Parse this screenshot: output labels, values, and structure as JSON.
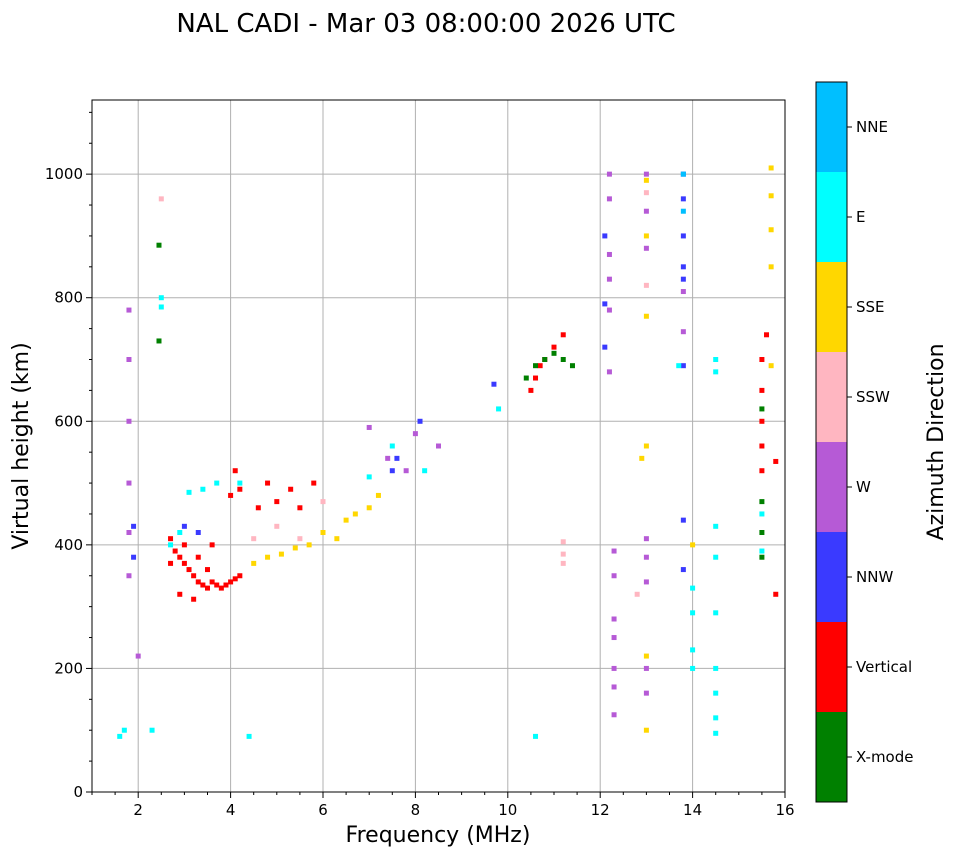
{
  "chart_data": {
    "type": "scatter",
    "title": "NAL CADI - Mar 03 08:00:00 2026 UTC",
    "xlabel": "Frequency (MHz)",
    "ylabel": "Virtual height (km)",
    "xlim": [
      1,
      16
    ],
    "ylim": [
      0,
      1120
    ],
    "xticks": [
      2,
      4,
      6,
      8,
      10,
      12,
      14,
      16
    ],
    "yticks": [
      0,
      200,
      400,
      600,
      800,
      1000
    ],
    "grid": true,
    "colorbar": {
      "label": "Azimuth Direction",
      "categories": [
        {
          "name": "X-mode",
          "color": "#008000"
        },
        {
          "name": "Vertical",
          "color": "#ff0000"
        },
        {
          "name": "NNW",
          "color": "#3a3aff"
        },
        {
          "name": "W",
          "color": "#b65ad6"
        },
        {
          "name": "SSW",
          "color": "#ffb6c1"
        },
        {
          "name": "SSE",
          "color": "#ffd700"
        },
        {
          "name": "E",
          "color": "#00ffff"
        },
        {
          "name": "NNE",
          "color": "#00bfff"
        }
      ]
    },
    "series": [
      {
        "name": "Vertical",
        "points": [
          [
            2.7,
            410
          ],
          [
            2.8,
            390
          ],
          [
            2.9,
            380
          ],
          [
            3.0,
            370
          ],
          [
            3.1,
            360
          ],
          [
            3.2,
            350
          ],
          [
            3.3,
            340
          ],
          [
            3.4,
            335
          ],
          [
            3.5,
            330
          ],
          [
            3.6,
            340
          ],
          [
            3.7,
            335
          ],
          [
            3.8,
            330
          ],
          [
            3.9,
            335
          ],
          [
            4.0,
            340
          ],
          [
            4.1,
            345
          ],
          [
            4.2,
            350
          ],
          [
            2.7,
            370
          ],
          [
            3.0,
            400
          ],
          [
            3.3,
            380
          ],
          [
            3.5,
            360
          ],
          [
            3.6,
            400
          ],
          [
            4.0,
            480
          ],
          [
            4.1,
            520
          ],
          [
            4.2,
            490
          ],
          [
            2.9,
            320
          ],
          [
            3.2,
            312
          ],
          [
            4.6,
            460
          ],
          [
            4.8,
            500
          ],
          [
            5.0,
            470
          ],
          [
            5.3,
            490
          ],
          [
            5.5,
            460
          ],
          [
            5.8,
            500
          ],
          [
            10.5,
            650
          ],
          [
            10.6,
            670
          ],
          [
            10.7,
            690
          ],
          [
            10.8,
            700
          ],
          [
            11.0,
            720
          ],
          [
            11.2,
            740
          ],
          [
            15.5,
            700
          ],
          [
            15.5,
            650
          ],
          [
            15.5,
            600
          ],
          [
            15.5,
            560
          ],
          [
            15.5,
            520
          ],
          [
            15.6,
            740
          ],
          [
            15.8,
            535
          ],
          [
            15.8,
            320
          ]
        ]
      },
      {
        "name": "X-mode",
        "points": [
          [
            2.45,
            885
          ],
          [
            2.45,
            730
          ],
          [
            10.4,
            670
          ],
          [
            10.6,
            690
          ],
          [
            10.8,
            700
          ],
          [
            11.0,
            710
          ],
          [
            11.2,
            700
          ],
          [
            11.4,
            690
          ],
          [
            15.5,
            470
          ],
          [
            15.5,
            420
          ],
          [
            15.5,
            380
          ],
          [
            15.5,
            620
          ]
        ]
      },
      {
        "name": "NNW",
        "points": [
          [
            1.9,
            430
          ],
          [
            1.9,
            380
          ],
          [
            3.0,
            430
          ],
          [
            3.3,
            420
          ],
          [
            7.5,
            520
          ],
          [
            7.6,
            540
          ],
          [
            8.1,
            600
          ],
          [
            9.7,
            660
          ],
          [
            12.1,
            900
          ],
          [
            12.1,
            790
          ],
          [
            12.1,
            720
          ],
          [
            13.8,
            1000
          ],
          [
            13.8,
            960
          ],
          [
            13.8,
            900
          ],
          [
            13.8,
            850
          ],
          [
            13.8,
            830
          ],
          [
            13.8,
            690
          ],
          [
            13.8,
            360
          ],
          [
            13.8,
            440
          ]
        ]
      },
      {
        "name": "W",
        "points": [
          [
            1.8,
            780
          ],
          [
            1.8,
            700
          ],
          [
            1.8,
            600
          ],
          [
            1.8,
            500
          ],
          [
            1.8,
            420
          ],
          [
            1.8,
            350
          ],
          [
            2.0,
            220
          ],
          [
            7.0,
            590
          ],
          [
            7.4,
            540
          ],
          [
            7.8,
            520
          ],
          [
            8.0,
            580
          ],
          [
            8.5,
            560
          ],
          [
            12.2,
            1000
          ],
          [
            12.2,
            960
          ],
          [
            12.2,
            870
          ],
          [
            12.2,
            830
          ],
          [
            12.2,
            780
          ],
          [
            12.2,
            680
          ],
          [
            12.3,
            390
          ],
          [
            12.3,
            350
          ],
          [
            12.3,
            280
          ],
          [
            12.3,
            250
          ],
          [
            12.3,
            200
          ],
          [
            12.3,
            170
          ],
          [
            12.3,
            125
          ],
          [
            13.0,
            1000
          ],
          [
            13.0,
            940
          ],
          [
            13.0,
            880
          ],
          [
            13.0,
            410
          ],
          [
            13.0,
            380
          ],
          [
            13.0,
            340
          ],
          [
            13.0,
            200
          ],
          [
            13.0,
            160
          ],
          [
            13.8,
            810
          ],
          [
            13.8,
            745
          ]
        ]
      },
      {
        "name": "SSW",
        "points": [
          [
            2.5,
            960
          ],
          [
            4.5,
            410
          ],
          [
            5.0,
            430
          ],
          [
            5.5,
            410
          ],
          [
            6.0,
            470
          ],
          [
            11.2,
            405
          ],
          [
            11.2,
            385
          ],
          [
            11.2,
            370
          ],
          [
            12.8,
            320
          ],
          [
            13.0,
            970
          ],
          [
            13.0,
            820
          ]
        ]
      },
      {
        "name": "SSE",
        "points": [
          [
            4.5,
            370
          ],
          [
            4.8,
            380
          ],
          [
            5.1,
            385
          ],
          [
            5.4,
            395
          ],
          [
            5.7,
            400
          ],
          [
            6.0,
            420
          ],
          [
            6.3,
            410
          ],
          [
            6.5,
            440
          ],
          [
            6.7,
            450
          ],
          [
            7.0,
            460
          ],
          [
            7.2,
            480
          ],
          [
            12.9,
            540
          ],
          [
            13.0,
            990
          ],
          [
            13.0,
            900
          ],
          [
            13.0,
            770
          ],
          [
            13.0,
            560
          ],
          [
            13.0,
            220
          ],
          [
            13.0,
            100
          ],
          [
            14.0,
            400
          ],
          [
            15.7,
            1010
          ],
          [
            15.7,
            965
          ],
          [
            15.7,
            910
          ],
          [
            15.7,
            850
          ],
          [
            15.7,
            690
          ]
        ]
      },
      {
        "name": "E",
        "points": [
          [
            1.6,
            90
          ],
          [
            1.7,
            100
          ],
          [
            2.3,
            100
          ],
          [
            2.5,
            800
          ],
          [
            2.5,
            785
          ],
          [
            2.7,
            400
          ],
          [
            2.9,
            420
          ],
          [
            3.1,
            485
          ],
          [
            3.4,
            490
          ],
          [
            3.7,
            500
          ],
          [
            4.2,
            500
          ],
          [
            4.4,
            90
          ],
          [
            7.0,
            510
          ],
          [
            7.5,
            560
          ],
          [
            8.2,
            520
          ],
          [
            9.8,
            620
          ],
          [
            10.6,
            90
          ],
          [
            13.7,
            690
          ],
          [
            14.0,
            330
          ],
          [
            14.0,
            290
          ],
          [
            14.0,
            230
          ],
          [
            14.0,
            200
          ],
          [
            14.5,
            700
          ],
          [
            14.5,
            680
          ],
          [
            14.5,
            430
          ],
          [
            14.5,
            380
          ],
          [
            14.5,
            290
          ],
          [
            14.5,
            200
          ],
          [
            14.5,
            160
          ],
          [
            14.5,
            120
          ],
          [
            14.5,
            95
          ],
          [
            15.5,
            450
          ],
          [
            15.5,
            390
          ]
        ]
      },
      {
        "name": "NNE",
        "points": [
          [
            13.8,
            1000
          ],
          [
            13.8,
            940
          ]
        ]
      }
    ]
  }
}
